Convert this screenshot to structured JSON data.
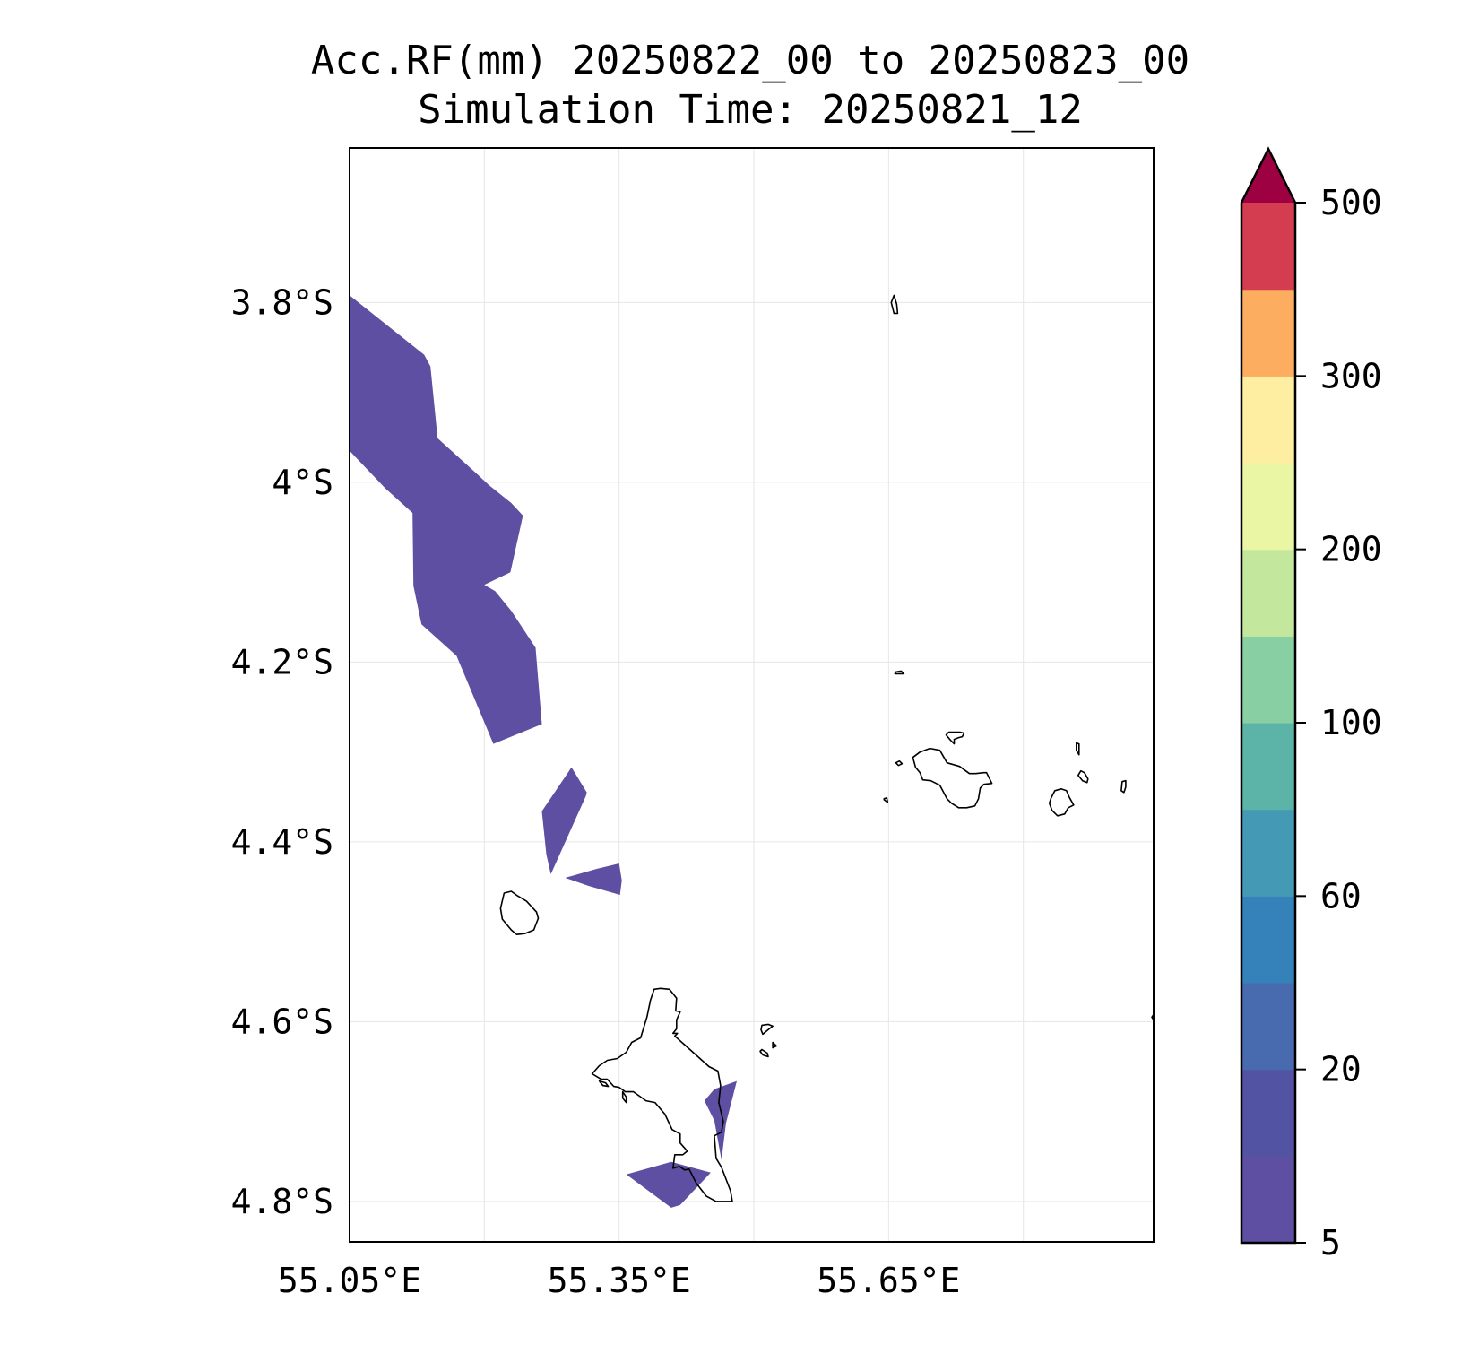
{
  "chart_data": {
    "type": "heatmap",
    "title": "Acc.RF(mm) 20250822_00 to 20250823_00",
    "subtitle": "Simulation Time: 20250821_12",
    "xlabel": "",
    "ylabel": "",
    "x_ticks": [
      {
        "value": 55.05,
        "label": "55.05°E"
      },
      {
        "value": 55.35,
        "label": "55.35°E"
      },
      {
        "value": 55.65,
        "label": "55.65°E"
      }
    ],
    "y_ticks": [
      {
        "value": -3.8,
        "label": "3.8°S"
      },
      {
        "value": -4.0,
        "label": "4°S"
      },
      {
        "value": -4.2,
        "label": "4.2°S"
      },
      {
        "value": -4.4,
        "label": "4.4°S"
      },
      {
        "value": -4.6,
        "label": "4.6°S"
      },
      {
        "value": -4.8,
        "label": "4.8°S"
      }
    ],
    "xlim": [
      55.05,
      55.945
    ],
    "ylim": [
      -4.845,
      -3.628
    ],
    "grid": true,
    "colorbar": {
      "placement": "right",
      "extend": "max",
      "levels": [
        5,
        10,
        20,
        40,
        60,
        80,
        100,
        150,
        200,
        250,
        300,
        400,
        500
      ],
      "tick_labels": [
        "500",
        "300",
        "200",
        "100",
        "60",
        "20",
        "5"
      ],
      "tick_values": [
        500,
        300,
        200,
        100,
        60,
        20,
        5
      ],
      "colors": [
        "#5e4fa2",
        "#5353a3",
        "#486aaf",
        "#3581ba",
        "#4499b5",
        "#5cb3a8",
        "#88cfa4",
        "#c4e79e",
        "#ebf6a5",
        "#feeea1",
        "#fdad60",
        "#d43d4f"
      ],
      "extend_color": "#9e0142"
    },
    "rain_areas": [
      {
        "bin": "5-10",
        "color": "#5e4fa2",
        "points": [
          [
            55.05,
            -3.792
          ],
          [
            55.133,
            -3.858
          ],
          [
            55.14,
            -3.871
          ],
          [
            55.148,
            -3.951
          ],
          [
            55.19,
            -3.989
          ],
          [
            55.205,
            -4.003
          ],
          [
            55.23,
            -4.023
          ],
          [
            55.243,
            -4.037
          ],
          [
            55.229,
            -4.1
          ],
          [
            55.2,
            -4.114
          ],
          [
            55.212,
            -4.121
          ],
          [
            55.23,
            -4.143
          ],
          [
            55.257,
            -4.184
          ],
          [
            55.264,
            -4.269
          ],
          [
            55.21,
            -4.291
          ],
          [
            55.169,
            -4.193
          ],
          [
            55.13,
            -4.158
          ],
          [
            55.121,
            -4.115
          ],
          [
            55.12,
            -4.034
          ],
          [
            55.09,
            -4.007
          ],
          [
            55.05,
            -3.965
          ]
        ]
      },
      {
        "bin": "5-10",
        "color": "#5e4fa2",
        "points": [
          [
            55.297,
            -4.317
          ],
          [
            55.314,
            -4.345
          ],
          [
            55.313,
            -4.349
          ],
          [
            55.274,
            -4.436
          ],
          [
            55.269,
            -4.414
          ],
          [
            55.264,
            -4.366
          ]
        ]
      },
      {
        "bin": "5-10",
        "color": "#5e4fa2",
        "points": [
          [
            55.29,
            -4.44
          ],
          [
            55.325,
            -4.43
          ],
          [
            55.35,
            -4.424
          ],
          [
            55.353,
            -4.443
          ],
          [
            55.351,
            -4.459
          ],
          [
            55.316,
            -4.449
          ]
        ]
      },
      {
        "bin": "5-10",
        "color": "#5e4fa2",
        "points": [
          [
            55.456,
            -4.675
          ],
          [
            55.481,
            -4.666
          ],
          [
            55.469,
            -4.713
          ],
          [
            55.464,
            -4.754
          ],
          [
            55.456,
            -4.71
          ],
          [
            55.445,
            -4.688
          ]
        ]
      },
      {
        "bin": "5-10",
        "color": "#5e4fa2",
        "points": [
          [
            55.358,
            -4.77
          ],
          [
            55.408,
            -4.756
          ],
          [
            55.452,
            -4.768
          ],
          [
            55.418,
            -4.804
          ],
          [
            55.408,
            -4.807
          ]
        ]
      }
    ],
    "coastlines": [
      {
        "name": "mahe",
        "points": [
          [
            55.385,
            -4.576
          ],
          [
            55.389,
            -4.564
          ],
          [
            55.396,
            -4.563
          ],
          [
            55.406,
            -4.564
          ],
          [
            55.414,
            -4.574
          ],
          [
            55.413,
            -4.588
          ],
          [
            55.418,
            -4.589
          ],
          [
            55.414,
            -4.598
          ],
          [
            55.414,
            -4.608
          ],
          [
            55.41,
            -4.613
          ],
          [
            55.415,
            -4.613
          ],
          [
            55.412,
            -4.616
          ],
          [
            55.44,
            -4.641
          ],
          [
            55.45,
            -4.65
          ],
          [
            55.46,
            -4.655
          ],
          [
            55.463,
            -4.671
          ],
          [
            55.461,
            -4.69
          ],
          [
            55.466,
            -4.711
          ],
          [
            55.464,
            -4.723
          ],
          [
            55.456,
            -4.727
          ],
          [
            55.458,
            -4.752
          ],
          [
            55.464,
            -4.762
          ],
          [
            55.474,
            -4.788
          ],
          [
            55.476,
            -4.8
          ],
          [
            55.458,
            -4.8
          ],
          [
            55.447,
            -4.794
          ],
          [
            55.436,
            -4.78
          ],
          [
            55.428,
            -4.764
          ],
          [
            55.423,
            -4.765
          ],
          [
            55.417,
            -4.761
          ],
          [
            55.41,
            -4.763
          ],
          [
            55.412,
            -4.748
          ],
          [
            55.421,
            -4.748
          ],
          [
            55.426,
            -4.744
          ],
          [
            55.418,
            -4.735
          ],
          [
            55.418,
            -4.725
          ],
          [
            55.409,
            -4.72
          ],
          [
            55.401,
            -4.703
          ],
          [
            55.39,
            -4.69
          ],
          [
            55.38,
            -4.688
          ],
          [
            55.366,
            -4.678
          ],
          [
            55.357,
            -4.678
          ],
          [
            55.35,
            -4.673
          ],
          [
            55.344,
            -4.672
          ],
          [
            55.337,
            -4.664
          ],
          [
            55.33,
            -4.664
          ],
          [
            55.32,
            -4.658
          ],
          [
            55.328,
            -4.649
          ],
          [
            55.337,
            -4.643
          ],
          [
            55.348,
            -4.641
          ],
          [
            55.358,
            -4.634
          ],
          [
            55.364,
            -4.623
          ],
          [
            55.374,
            -4.618
          ],
          [
            55.381,
            -4.595
          ]
        ]
      },
      {
        "name": "silhouette",
        "points": [
          [
            55.23,
            -4.455
          ],
          [
            55.237,
            -4.46
          ],
          [
            55.247,
            -4.466
          ],
          [
            55.258,
            -4.478
          ],
          [
            55.26,
            -4.485
          ],
          [
            55.255,
            -4.498
          ],
          [
            55.245,
            -4.502
          ],
          [
            55.236,
            -4.503
          ],
          [
            55.23,
            -4.498
          ],
          [
            55.22,
            -4.486
          ],
          [
            55.218,
            -4.474
          ],
          [
            55.222,
            -4.457
          ]
        ]
      },
      {
        "name": "praslin",
        "points": [
          [
            55.677,
            -4.306
          ],
          [
            55.685,
            -4.3
          ],
          [
            55.696,
            -4.296
          ],
          [
            55.707,
            -4.298
          ],
          [
            55.715,
            -4.312
          ],
          [
            55.729,
            -4.316
          ],
          [
            55.74,
            -4.324
          ],
          [
            55.747,
            -4.324
          ],
          [
            55.756,
            -4.323
          ],
          [
            55.759,
            -4.323
          ],
          [
            55.765,
            -4.335
          ],
          [
            55.756,
            -4.336
          ],
          [
            55.752,
            -4.34
          ],
          [
            55.75,
            -4.352
          ],
          [
            55.746,
            -4.36
          ],
          [
            55.737,
            -4.362
          ],
          [
            55.728,
            -4.362
          ],
          [
            55.72,
            -4.357
          ],
          [
            55.715,
            -4.352
          ],
          [
            55.707,
            -4.337
          ],
          [
            55.697,
            -4.332
          ],
          [
            55.688,
            -4.331
          ],
          [
            55.685,
            -4.323
          ],
          [
            55.68,
            -4.317
          ]
        ]
      },
      {
        "name": "la-digue",
        "points": [
          [
            55.842,
            -4.341
          ],
          [
            55.848,
            -4.343
          ],
          [
            55.851,
            -4.35
          ],
          [
            55.856,
            -4.359
          ],
          [
            55.85,
            -4.362
          ],
          [
            55.846,
            -4.369
          ],
          [
            55.838,
            -4.371
          ],
          [
            55.832,
            -4.365
          ],
          [
            55.829,
            -4.357
          ],
          [
            55.831,
            -4.351
          ],
          [
            55.835,
            -4.343
          ]
        ]
      },
      {
        "name": "curieuse",
        "points": [
          [
            55.717,
            -4.278
          ],
          [
            55.73,
            -4.278
          ],
          [
            55.734,
            -4.279
          ],
          [
            55.732,
            -4.283
          ],
          [
            55.728,
            -4.284
          ],
          [
            55.723,
            -4.286
          ],
          [
            55.723,
            -4.291
          ],
          [
            55.719,
            -4.287
          ],
          [
            55.714,
            -4.281
          ]
        ]
      },
      {
        "name": "felicite",
        "points": [
          [
            55.864,
            -4.321
          ],
          [
            55.868,
            -4.323
          ],
          [
            55.872,
            -4.33
          ],
          [
            55.871,
            -4.334
          ],
          [
            55.866,
            -4.332
          ],
          [
            55.861,
            -4.326
          ]
        ]
      },
      {
        "name": "marianne",
        "points": [
          [
            55.91,
            -4.333
          ],
          [
            55.914,
            -4.332
          ],
          [
            55.914,
            -4.339
          ],
          [
            55.912,
            -4.345
          ],
          [
            55.909,
            -4.343
          ]
        ]
      },
      {
        "name": "aride",
        "points": [
          [
            55.658,
            -4.211
          ],
          [
            55.664,
            -4.21
          ],
          [
            55.667,
            -4.213
          ],
          [
            55.662,
            -4.213
          ],
          [
            55.657,
            -4.213
          ]
        ]
      },
      {
        "name": "booby",
        "points": [
          [
            55.658,
            -4.312
          ],
          [
            55.662,
            -4.31
          ],
          [
            55.665,
            -4.313
          ],
          [
            55.661,
            -4.315
          ]
        ]
      },
      {
        "name": "cousin",
        "points": [
          [
            55.645,
            -4.352
          ],
          [
            55.648,
            -4.351
          ],
          [
            55.649,
            -4.356
          ],
          [
            55.645,
            -4.353
          ]
        ]
      },
      {
        "name": "north-islet",
        "points": [
          [
            55.653,
            -3.8
          ],
          [
            55.656,
            -3.792
          ],
          [
            55.659,
            -3.802
          ],
          [
            55.66,
            -3.812
          ],
          [
            55.656,
            -3.812
          ]
        ]
      },
      {
        "name": "cocos",
        "points": [
          [
            55.859,
            -4.29
          ],
          [
            55.862,
            -4.291
          ],
          [
            55.862,
            -4.303
          ],
          [
            55.859,
            -4.298
          ]
        ]
      },
      {
        "name": "east-edge-islet",
        "points": [
          [
            55.945,
            -4.592
          ],
          [
            55.943,
            -4.595
          ],
          [
            55.945,
            -4.598
          ]
        ]
      },
      {
        "name": "ste-anne",
        "points": [
          [
            55.509,
            -4.604
          ],
          [
            55.516,
            -4.603
          ],
          [
            55.521,
            -4.605
          ],
          [
            55.516,
            -4.609
          ],
          [
            55.51,
            -4.614
          ],
          [
            55.508,
            -4.609
          ]
        ]
      },
      {
        "name": "cerf",
        "points": [
          [
            55.509,
            -4.631
          ],
          [
            55.515,
            -4.635
          ],
          [
            55.516,
            -4.639
          ],
          [
            55.51,
            -4.637
          ],
          [
            55.507,
            -4.633
          ]
        ]
      },
      {
        "name": "round",
        "points": [
          [
            55.521,
            -4.623
          ],
          [
            55.525,
            -4.627
          ],
          [
            55.521,
            -4.629
          ]
        ]
      },
      {
        "name": "therese",
        "points": [
          [
            55.328,
            -4.666
          ],
          [
            55.335,
            -4.668
          ],
          [
            55.338,
            -4.672
          ],
          [
            55.332,
            -4.671
          ]
        ]
      },
      {
        "name": "conception",
        "points": [
          [
            55.354,
            -4.678
          ],
          [
            55.358,
            -4.684
          ],
          [
            55.358,
            -4.69
          ],
          [
            55.354,
            -4.685
          ]
        ]
      }
    ]
  }
}
